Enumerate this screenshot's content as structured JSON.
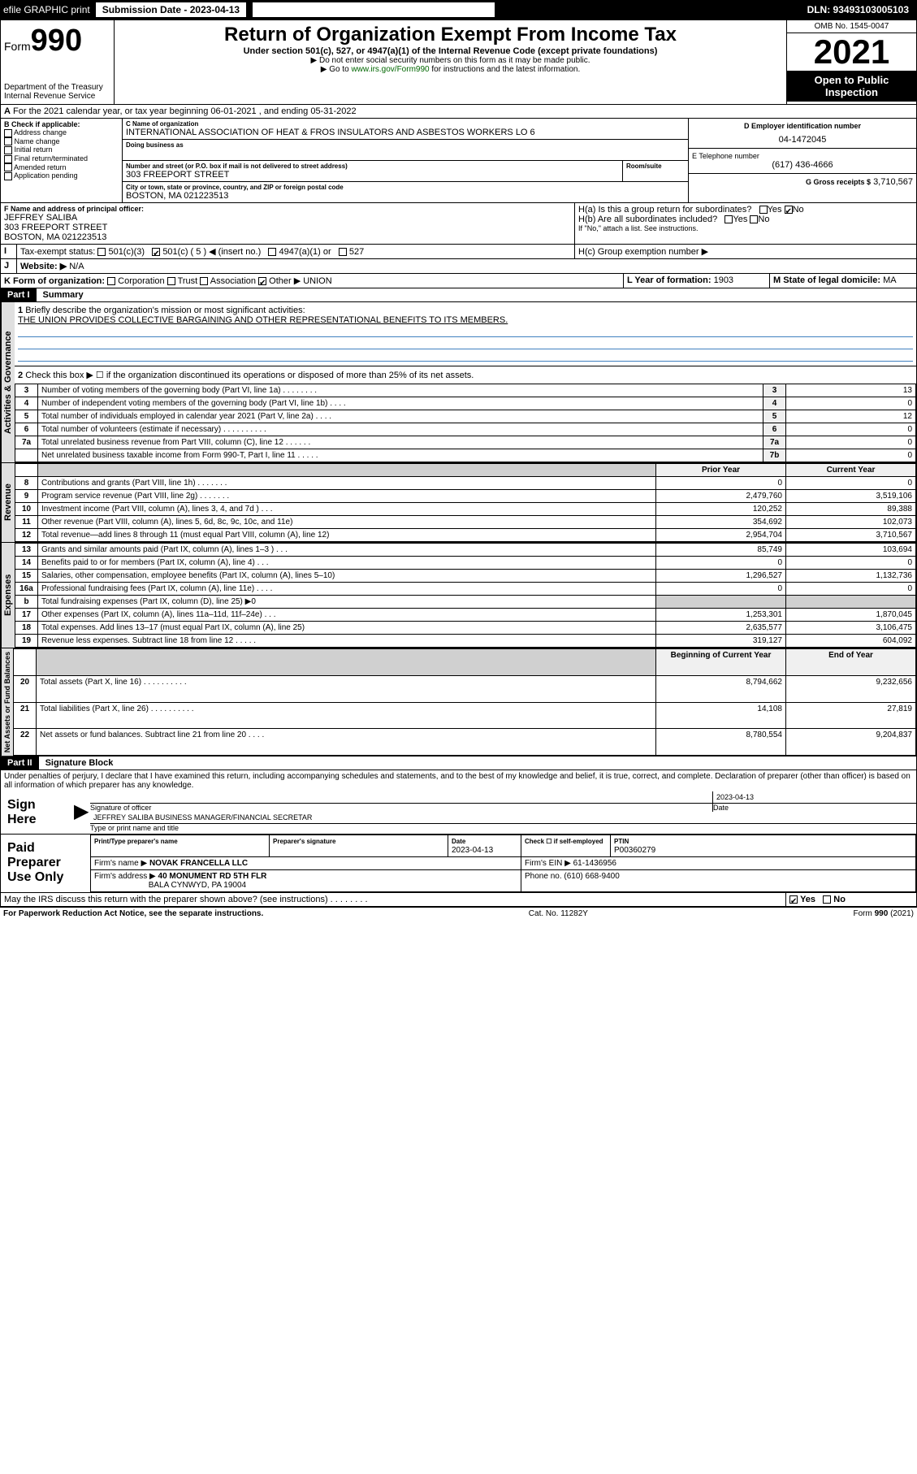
{
  "topbar": {
    "efile": "efile GRAPHIC print",
    "submission_label": "Submission Date - 2023-04-13",
    "dln": "DLN: 93493103005103"
  },
  "header": {
    "form_word": "Form",
    "form_no": "990",
    "dept": "Department of the Treasury",
    "irs": "Internal Revenue Service",
    "title": "Return of Organization Exempt From Income Tax",
    "sub": "Under section 501(c), 527, or 4947(a)(1) of the Internal Revenue Code (except private foundations)",
    "hint1": "▶ Do not enter social security numbers on this form as it may be made public.",
    "hint2_pre": "▶ Go to ",
    "hint2_link": "www.irs.gov/Form990",
    "hint2_post": " for instructions and the latest information.",
    "omb": "OMB No. 1545-0047",
    "year": "2021",
    "open": "Open to Public Inspection"
  },
  "line_a": "For the 2021 calendar year, or tax year beginning 06-01-2021   , and ending 05-31-2022",
  "b": {
    "label": "B Check if applicable:",
    "opts": [
      "Address change",
      "Name change",
      "Initial return",
      "Final return/terminated",
      "Amended return",
      "Application pending"
    ]
  },
  "c": {
    "label": "C Name of organization",
    "name": "INTERNATIONAL ASSOCIATION OF HEAT & FROS INSULATORS AND ASBESTOS WORKERS LO 6",
    "dba_label": "Doing business as",
    "addr_label": "Number and street (or P.O. box if mail is not delivered to street address)",
    "room_label": "Room/suite",
    "addr": "303 FREEPORT STREET",
    "city_label": "City or town, state or province, country, and ZIP or foreign postal code",
    "city": "BOSTON, MA  021223513"
  },
  "d": {
    "label": "D Employer identification number",
    "val": "04-1472045"
  },
  "e": {
    "label": "E Telephone number",
    "val": "(617) 436-4666"
  },
  "g": {
    "label": "G Gross receipts $",
    "val": "3,710,567"
  },
  "f": {
    "label": "F Name and address of principal officer:",
    "name": "JEFFREY SALIBA",
    "addr": "303 FREEPORT STREET",
    "city": "BOSTON, MA  021223513"
  },
  "h": {
    "a": "H(a)  Is this a group return for subordinates?",
    "b": "H(b)  Are all subordinates included?",
    "b_note": "If \"No,\" attach a list. See instructions.",
    "c": "H(c)  Group exemption number ▶",
    "yes": "Yes",
    "no": "No"
  },
  "i": {
    "label": "Tax-exempt status:",
    "o1": "501(c)(3)",
    "o2": "501(c) ( 5 ) ◀ (insert no.)",
    "o3": "4947(a)(1) or",
    "o4": "527"
  },
  "j": {
    "label": "Website: ▶",
    "val": "N/A"
  },
  "k": {
    "label": "K Form of organization:",
    "opts": [
      "Corporation",
      "Trust",
      "Association"
    ],
    "other": "Other ▶",
    "other_val": "UNION"
  },
  "l": {
    "label": "L Year of formation:",
    "val": "1903"
  },
  "m": {
    "label": "M State of legal domicile:",
    "val": "MA"
  },
  "part1": {
    "hdr": "Part I",
    "title": "Summary"
  },
  "p1": {
    "l1_label": "Briefly describe the organization's mission or most significant activities:",
    "l1_text": "THE UNION PROVIDES COLLECTIVE BARGAINING AND OTHER REPRESENTATIONAL BENEFITS TO ITS MEMBERS.",
    "l2": "Check this box ▶ ☐  if the organization discontinued its operations or disposed of more than 25% of its net assets.",
    "rows_ag": [
      {
        "n": "3",
        "d": "Number of voting members of the governing body (Part VI, line 1a)   .    .    .    .    .    .    .    .",
        "b": "3",
        "v": "13"
      },
      {
        "n": "4",
        "d": "Number of independent voting members of the governing body (Part VI, line 1b)  .    .    .    .",
        "b": "4",
        "v": "0"
      },
      {
        "n": "5",
        "d": "Total number of individuals employed in calendar year 2021 (Part V, line 2a)   .    .    .    .",
        "b": "5",
        "v": "12"
      },
      {
        "n": "6",
        "d": "Total number of volunteers (estimate if necessary)   .    .    .    .    .    .    .    .    .    .",
        "b": "6",
        "v": "0"
      },
      {
        "n": "7a",
        "d": "Total unrelated business revenue from Part VIII, column (C), line 12   .    .    .    .    .    .",
        "b": "7a",
        "v": "0"
      },
      {
        "n": "",
        "d": "Net unrelated business taxable income from Form 990-T, Part I, line 11   .    .    .    .    .",
        "b": "7b",
        "v": "0"
      }
    ],
    "col_prior": "Prior Year",
    "col_curr": "Current Year",
    "rev": [
      {
        "n": "8",
        "d": "Contributions and grants (Part VIII, line 1h)   .    .    .    .    .    .    .",
        "p": "0",
        "c": "0"
      },
      {
        "n": "9",
        "d": "Program service revenue (Part VIII, line 2g)   .    .    .    .    .    .    .",
        "p": "2,479,760",
        "c": "3,519,106"
      },
      {
        "n": "10",
        "d": "Investment income (Part VIII, column (A), lines 3, 4, and 7d )   .    .    .",
        "p": "120,252",
        "c": "89,388"
      },
      {
        "n": "11",
        "d": "Other revenue (Part VIII, column (A), lines 5, 6d, 8c, 9c, 10c, and 11e)",
        "p": "354,692",
        "c": "102,073"
      },
      {
        "n": "12",
        "d": "Total revenue—add lines 8 through 11 (must equal Part VIII, column (A), line 12)",
        "p": "2,954,704",
        "c": "3,710,567"
      }
    ],
    "exp": [
      {
        "n": "13",
        "d": "Grants and similar amounts paid (Part IX, column (A), lines 1–3 )   .    .    .",
        "p": "85,749",
        "c": "103,694"
      },
      {
        "n": "14",
        "d": "Benefits paid to or for members (Part IX, column (A), line 4)   .    .    .",
        "p": "0",
        "c": "0"
      },
      {
        "n": "15",
        "d": "Salaries, other compensation, employee benefits (Part IX, column (A), lines 5–10)",
        "p": "1,296,527",
        "c": "1,132,736"
      },
      {
        "n": "16a",
        "d": "Professional fundraising fees (Part IX, column (A), line 11e)   .    .    .    .",
        "p": "0",
        "c": "0"
      },
      {
        "n": "b",
        "d": "Total fundraising expenses (Part IX, column (D), line 25) ▶0",
        "p": "",
        "c": "",
        "shade": true
      },
      {
        "n": "17",
        "d": "Other expenses (Part IX, column (A), lines 11a–11d, 11f–24e)   .    .    .",
        "p": "1,253,301",
        "c": "1,870,045"
      },
      {
        "n": "18",
        "d": "Total expenses. Add lines 13–17 (must equal Part IX, column (A), line 25)",
        "p": "2,635,577",
        "c": "3,106,475"
      },
      {
        "n": "19",
        "d": "Revenue less expenses. Subtract line 18 from line 12   .    .    .    .    .",
        "p": "319,127",
        "c": "604,092"
      }
    ],
    "col_begin": "Beginning of Current Year",
    "col_end": "End of Year",
    "net": [
      {
        "n": "20",
        "d": "Total assets (Part X, line 16)   .    .    .    .    .    .    .    .    .    .",
        "p": "8,794,662",
        "c": "9,232,656"
      },
      {
        "n": "21",
        "d": "Total liabilities (Part X, line 26)   .    .    .    .    .    .    .    .    .    .",
        "p": "14,108",
        "c": "27,819"
      },
      {
        "n": "22",
        "d": "Net assets or fund balances. Subtract line 21 from line 20   .    .    .    .",
        "p": "8,780,554",
        "c": "9,204,837"
      }
    ]
  },
  "vtabs": {
    "ag": "Activities & Governance",
    "rev": "Revenue",
    "exp": "Expenses",
    "net": "Net Assets or Fund Balances"
  },
  "part2": {
    "hdr": "Part II",
    "title": "Signature Block"
  },
  "penalty": "Under penalties of perjury, I declare that I have examined this return, including accompanying schedules and statements, and to the best of my knowledge and belief, it is true, correct, and complete. Declaration of preparer (other than officer) is based on all information of which preparer has any knowledge.",
  "sign": {
    "here": "Sign Here",
    "sig_label": "Signature of officer",
    "date": "2023-04-13",
    "date_label": "Date",
    "name": "JEFFREY SALIBA  BUSINESS MANAGER/FINANCIAL SECRETAR",
    "name_label": "Type or print name and title"
  },
  "prep": {
    "title": "Paid Preparer Use Only",
    "h1": "Print/Type preparer's name",
    "h2": "Preparer's signature",
    "h3": "Date",
    "h4": "Check ☐ if self-employed",
    "h5": "PTIN",
    "date": "2023-04-13",
    "ptin": "P00360279",
    "firm_label": "Firm's name    ▶",
    "firm": "NOVAK FRANCELLA LLC",
    "ein_label": "Firm's EIN ▶",
    "ein": "61-1436956",
    "addr_label": "Firm's address ▶",
    "addr1": "40 MONUMENT RD 5TH FLR",
    "addr2": "BALA CYNWYD, PA  19004",
    "phone_label": "Phone no.",
    "phone": "(610) 668-9400"
  },
  "may": {
    "text": "May the IRS discuss this return with the preparer shown above? (see instructions)   .    .    .    .    .    .    .    .",
    "yes": "Yes",
    "no": "No"
  },
  "footer": {
    "l": "For Paperwork Reduction Act Notice, see the separate instructions.",
    "m": "Cat. No. 11282Y",
    "r": "Form 990 (2021)"
  }
}
